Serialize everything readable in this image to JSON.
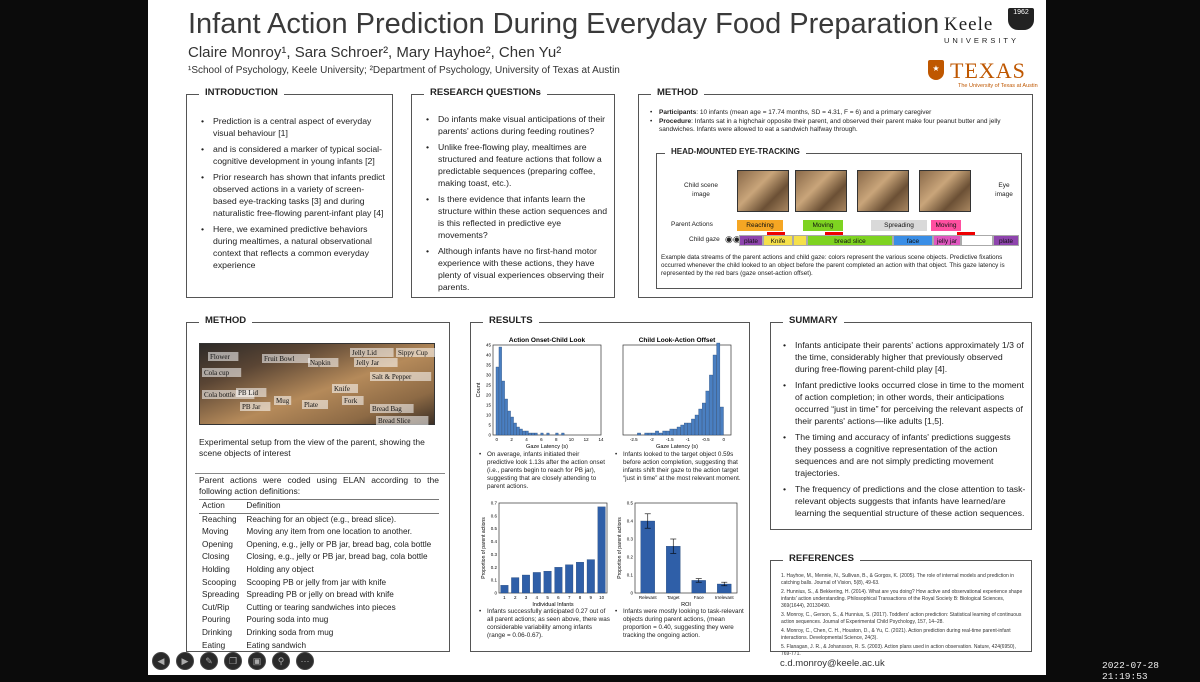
{
  "poster": {
    "title": "Infant Action Prediction During Everyday Food Preparation",
    "authors": "Claire Monroy¹, Sara Schroer², Mary Hayhoe², Chen Yu²",
    "affiliations": "¹School of Psychology, Keele University; ²Department of Psychology, University of Texas at Austin",
    "keele_logo": {
      "word": "Keele",
      "sub": "UNIVERSITY",
      "crest": "1962"
    },
    "texas_logo": {
      "word": "TEXAS",
      "sub": "The University of Texas at Austin"
    },
    "email": "c.d.monroy@keele.ac.uk"
  },
  "introduction": {
    "heading": "INTRODUCTION",
    "bullets": [
      "Prediction is a central aspect of everyday visual behaviour [1]",
      "and is considered a marker of typical social-cognitive development in young infants [2]",
      "Prior research has shown that infants predict observed actions in a variety of screen-based eye-tracking tasks [3] and during naturalistic free-flowing parent-infant play [4]",
      "Here, we examined predictive behaviors during mealtimes, a natural observational context that reflects a common everyday experience"
    ]
  },
  "research_questions": {
    "heading": "RESEARCH QUESTIONs",
    "bullets": [
      "Do infants make visual anticipations of their parents' actions during feeding routines?",
      "Unlike free-flowing play, mealtimes are structured and feature actions that follow a predictable sequences (preparing coffee, making toast, etc.).",
      "Is there evidence that infants learn the structure within these action sequences and is this reflected in predictive eye movements?",
      "Although infants have no first-hand motor experience with these actions, they have plenty of visual experiences observing their parents."
    ]
  },
  "method_top": {
    "heading": "METHOD",
    "participants_label": "Participants",
    "participants_text": ": 10 infants (mean age = 17.74 months, SD = 4.31, F = 6) and a primary caregiver",
    "procedure_label": "Procedure",
    "procedure_text": ": Infants sat in a highchair opposite their parent, and observed their parent make four peanut butter and jelly sandwiches. Infants were allowed to eat a sandwich halfway through.",
    "eye_tracking_heading": "HEAD-MOUNTED EYE-TRACKING",
    "child_scene_label": "Child scene image",
    "eye_image_label": "Eye image",
    "parent_actions_label": "Parent Actions",
    "child_gaze_label": "Child gaze",
    "parent_actions": [
      {
        "label": "Reaching",
        "color": "#f5a623"
      },
      {
        "label": "Moving",
        "color": "#7ed321"
      },
      {
        "label": "Spreading",
        "color": "#d9d9d9"
      },
      {
        "label": "Moving",
        "color": "#ff4fa0"
      }
    ],
    "gaze_segments": [
      {
        "label": "plate",
        "color": "#8e44ad"
      },
      {
        "label": "Knife",
        "color": "#f5e04a"
      },
      {
        "label": "",
        "color": "#f5e04a"
      },
      {
        "label": "bread slice",
        "color": "#7ed321"
      },
      {
        "label": "face",
        "color": "#3a8ee6"
      },
      {
        "label": "jelly jar",
        "color": "#e056c0"
      },
      {
        "label": "",
        "color": "#ffffff"
      },
      {
        "label": "plate",
        "color": "#8e44ad"
      }
    ],
    "caption": "Example data streams of the parent actions and child gaze: colors represent the various scene objects. Predictive fixations occurred whenever the child looked to an object before  the parent completed an action with that object. This gaze latency is represented by the red bars (gaze onset-action offset)."
  },
  "method_bottom": {
    "heading": "METHOD",
    "photo_labels": [
      "Flower",
      "Cola cup",
      "Fruit Bowl",
      "Napkin",
      "Jelly Lid",
      "Sippy Cup",
      "Jelly Jar",
      "Salt & Pepper",
      "Cola bottle",
      "PB Lid",
      "PB Jar",
      "Mug",
      "Plate",
      "Knife",
      "Fork",
      "Bread Bag",
      "Bread Slice"
    ],
    "photo_caption": "Experimental setup from the view of the parent, showing the scene objects of interest",
    "actions_intro": "Parent actions were coded using ELAN according to the following action definitions:",
    "table_header": [
      "Action",
      "Definition"
    ],
    "table_rows": [
      [
        "Reaching",
        "Reaching for an object (e.g., bread slice)."
      ],
      [
        "Moving",
        "Moving any item from one location to another."
      ],
      [
        "Opening",
        "Opening, e.g., jelly or PB jar, bread bag, cola bottle"
      ],
      [
        "Closing",
        "Closing, e.g., jelly or PB jar, bread bag, cola bottle"
      ],
      [
        "Holding",
        "Holding any object"
      ],
      [
        "Scooping",
        "Scooping PB or jelly from jar with knife"
      ],
      [
        "Spreading",
        "Spreading PB or jelly on bread with knife"
      ],
      [
        "Cut/Rip",
        "Cutting or tearing sandwiches into pieces"
      ],
      [
        "Pouring",
        "Pouring soda into mug"
      ],
      [
        "Drinking",
        "Drinking soda from mug"
      ],
      [
        "Eating",
        "Eating sandwich"
      ]
    ]
  },
  "results": {
    "heading": "RESULTS",
    "bullet_1": "On average, infants initiated their predictive look 1.13s after the action onset (i.e., parents begin to reach for PB jar), suggesting that are closely attending to parent actions.",
    "bullet_2": "Infants looked to the target object 0.59s before action completion, suggesting that infants shift their gaze to the action target “just in time” at the most relevant moment.",
    "bullet_3": "Infants successfully anticipated 0.27 out of all parent actions; as seen above, there was considerable variability among infants (range = 0.06-0.67).",
    "bullet_4": "Infants were mostly looking to task-relevant objects during parent actions, (mean proportion = 0.40, suggesting they were tracking the ongoing action."
  },
  "summary": {
    "heading": "SUMMARY",
    "bullets": [
      "Infants anticipate their parents' actions approximately 1/3 of the time, considerably higher that previously observed during free-flowing parent-child play [4].",
      "Infant predictive looks occurred close in time to the moment of action completion; in other words, their anticipations occurred “just in time” for perceiving the relevant aspects of their parents' actions—like adults [1,5].",
      "The timing and accuracy of infants' predictions suggests they possess a cognitive representation of the action sequences and are not simply predicting movement trajectories.",
      "The frequency of predictions and the close attention to task-relevant objects suggests that infants have learned/are learning the sequential structure of these action sequences."
    ]
  },
  "references": {
    "heading": "REFERENCES",
    "items": [
      "1. Hayhoe, M., Mennie, N., Sullivan, B., & Gorgos, K. (2005). The role of internal models and prediction in catching balls. Journal of Vision, 5(8), 49-63.",
      "2. Hunnius, S., & Bekkering, H. (2014). What are you doing? How active and observational experience shape infants' action understanding. Philosophical Transactions of the Royal Society B: Biological Sciences, 369(1644), 20130490.",
      "3. Monroy, C., Gerson, S., & Hunnius, S. (2017). Toddlers' action prediction: Statistical learning of continuous action sequences. Journal of Experimental Child Psychology, 157, 14–28.",
      "4. Monroy, C., Chen, C. H., Houston, D., & Yu, C. (2021). Action prediction during real-time parent-infant interactions. Developmental Science, 24(3).",
      "5. Flanagan, J. R., & Johansson, R. S. (2003). Action plans used in action observation. Nature, 424(6950), 769-771."
    ]
  },
  "chart_data": [
    {
      "type": "bar",
      "title": "Action Onset-Child Look",
      "xlabel": "Gaze Latency (s)",
      "ylabel": "Count",
      "x_ticks": [
        "0",
        "2",
        "4",
        "6",
        "8",
        "10",
        "12",
        "14"
      ],
      "y_ticks": [
        "0",
        "5",
        "10",
        "15",
        "20",
        "25",
        "30",
        "35",
        "40",
        "45"
      ],
      "ylim": [
        0,
        45
      ],
      "xlim": [
        -0.5,
        14
      ],
      "bin_width": 0.4,
      "values": [
        34,
        44,
        27,
        18,
        12,
        9,
        6,
        4,
        3,
        2,
        2,
        1,
        1,
        1,
        0,
        1,
        0,
        1,
        0,
        0,
        1,
        0,
        1
      ]
    },
    {
      "type": "bar",
      "title": "Child Look-Action Offset",
      "xlabel": "Gaze Latency (s)",
      "ylabel": "",
      "x_ticks": [
        "-2.5",
        "-2",
        "-1.5",
        "-1",
        "-0.5",
        "0"
      ],
      "y_ticks": [],
      "ylim": [
        0,
        45
      ],
      "xlim": [
        -2.8,
        0.2
      ],
      "bin_width": 0.1,
      "values": [
        1,
        0,
        1,
        1,
        1,
        2,
        1,
        2,
        2,
        3,
        3,
        4,
        5,
        6,
        6,
        8,
        10,
        13,
        16,
        22,
        30,
        40,
        46,
        14
      ]
    },
    {
      "type": "bar",
      "title": "",
      "xlabel": "Individual Infants",
      "ylabel": "Proportion of parent actions",
      "categories": [
        "1",
        "2",
        "3",
        "4",
        "5",
        "6",
        "7",
        "8",
        "9",
        "10"
      ],
      "y_ticks": [
        "0",
        "0.1",
        "0.2",
        "0.3",
        "0.4",
        "0.5",
        "0.6",
        "0.7"
      ],
      "ylim": [
        0,
        0.7
      ],
      "values": [
        0.06,
        0.12,
        0.14,
        0.16,
        0.17,
        0.2,
        0.22,
        0.24,
        0.26,
        0.67
      ]
    },
    {
      "type": "bar",
      "title": "",
      "xlabel": "ROI",
      "ylabel": "Proportion of parent actions",
      "categories": [
        "Relevant",
        "Target",
        "Face",
        "Irrelevant"
      ],
      "y_ticks": [
        "0",
        "0.1",
        "0.2",
        "0.3",
        "0.4",
        "0.5"
      ],
      "ylim": [
        0,
        0.5
      ],
      "values": [
        0.4,
        0.26,
        0.07,
        0.05
      ],
      "errors": [
        0.04,
        0.04,
        0.01,
        0.01
      ]
    }
  ],
  "screen": {
    "timestamp": "2022-07-28  21:19:53",
    "toolbar_icons": [
      "back-arrow",
      "forward-arrow",
      "pen",
      "copy",
      "slides",
      "zoom",
      "more"
    ]
  }
}
